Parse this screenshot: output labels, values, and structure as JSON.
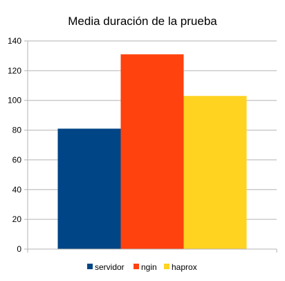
{
  "chart_data": {
    "type": "bar",
    "title": "Media duración de la prueba",
    "xlabel": "",
    "ylabel": "",
    "ylim": [
      0,
      140
    ],
    "yticks": [
      0,
      20,
      40,
      60,
      80,
      100,
      120,
      140
    ],
    "grid": "horizontal",
    "legend_position": "bottom",
    "categories": [
      ""
    ],
    "series": [
      {
        "name": "servidor",
        "values": [
          81
        ],
        "color": "#004586"
      },
      {
        "name": "ngin",
        "values": [
          131
        ],
        "color": "#ff420e"
      },
      {
        "name": "haprox",
        "values": [
          103
        ],
        "color": "#ffd320"
      }
    ]
  }
}
